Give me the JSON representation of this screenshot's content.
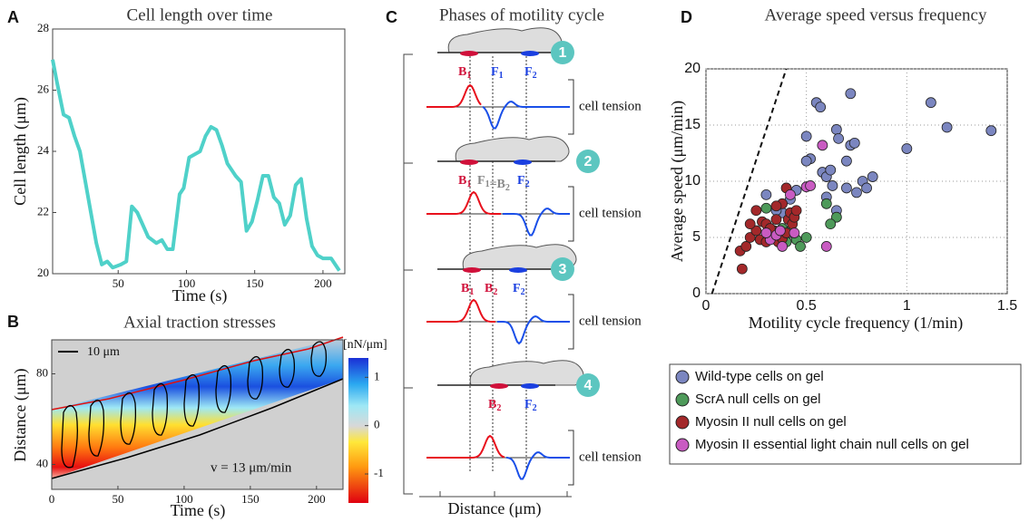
{
  "chart_data": [
    {
      "panel": "A",
      "type": "line",
      "title": "Cell length over time",
      "x_label": "Time (s)",
      "y_label": "Cell length (μm)",
      "x": [
        2,
        5,
        10,
        14,
        18,
        22,
        26,
        30,
        34,
        38,
        42,
        46,
        52,
        56,
        60,
        64,
        68,
        72,
        78,
        82,
        86,
        90,
        95,
        98,
        102,
        106,
        110,
        114,
        118,
        122,
        126,
        130,
        136,
        140,
        144,
        148,
        152,
        156,
        160,
        164,
        168,
        172,
        176,
        180,
        184,
        188,
        192,
        196,
        200,
        206,
        212
      ],
      "values": [
        27,
        26.3,
        25.2,
        25.1,
        24.5,
        24,
        23,
        22,
        21,
        20.3,
        20.4,
        20.2,
        20.3,
        20.4,
        22.2,
        22,
        21.6,
        21.2,
        21,
        21.1,
        20.8,
        20.8,
        22.6,
        22.8,
        23.8,
        23.9,
        24,
        24.5,
        24.8,
        24.7,
        24.2,
        23.6,
        23.2,
        23,
        21.4,
        21.7,
        22.4,
        23.2,
        23.2,
        22.5,
        22.3,
        21.6,
        21.9,
        22.9,
        23.1,
        21.8,
        20.9,
        20.6,
        20.5,
        20.5,
        20.1
      ],
      "color": "#4fd1c9",
      "xlim": [
        2,
        216
      ],
      "ylim": [
        20,
        28
      ],
      "xticks": [
        50,
        100,
        150,
        200
      ],
      "yticks": [
        20,
        22,
        24,
        26,
        28
      ]
    },
    {
      "panel": "B",
      "type": "heatmap",
      "title": "Axial traction stresses",
      "x_label": "Time (s)",
      "y_label": "Distance (μm)",
      "xlim": [
        0,
        220
      ],
      "ylim": [
        29,
        95
      ],
      "xticks": [
        0,
        50,
        100,
        150,
        200
      ],
      "yticks": [
        40,
        80
      ],
      "colorbar": {
        "label": "[nN/μm]",
        "lim": [
          -1.6,
          1.4
        ],
        "ticks": [
          1,
          0,
          -1
        ]
      },
      "scale_bar": "10 μm",
      "annotation": "v = 13 μm/min"
    },
    {
      "panel": "D",
      "type": "scatter",
      "title": "Average speed versus frequency",
      "x_label": "Motility cycle frequency (1/min)",
      "y_label": "Average speed (μm/min)",
      "xlim": [
        0,
        1.5
      ],
      "ylim": [
        0,
        20
      ],
      "xticks": [
        0,
        0.5,
        1,
        1.5
      ],
      "yticks": [
        0,
        5,
        10,
        15,
        20
      ],
      "grid": true,
      "fit_line": {
        "x": [
          0.03,
          0.4
        ],
        "values": [
          0,
          20
        ]
      },
      "series": [
        {
          "name": "Wild-type cells on gel",
          "color": "#7b86c0",
          "x": [
            0.5,
            0.52,
            0.5,
            0.58,
            0.6,
            0.62,
            0.63,
            0.65,
            0.66,
            0.7,
            0.72,
            0.74,
            0.7,
            0.75,
            0.78,
            0.8,
            0.83,
            0.6,
            0.45,
            0.42,
            0.38,
            0.35,
            0.3,
            0.55,
            0.72,
            1.0,
            1.12,
            1.2,
            1.42,
            0.57,
            0.65,
            0.4
          ],
          "values": [
            14,
            12,
            11.8,
            10.8,
            10.4,
            11,
            9.6,
            14.6,
            13.8,
            11.8,
            13.2,
            13.4,
            9.4,
            9,
            10,
            9.4,
            10.4,
            8.6,
            9.2,
            8.4,
            7.2,
            7.4,
            8.8,
            17,
            17.8,
            12.9,
            17,
            14.8,
            14.5,
            16.6,
            7.4,
            5.2
          ]
        },
        {
          "name": "ScrA null cells on gel",
          "color": "#4e9a5a",
          "x": [
            0.3,
            0.42,
            0.45,
            0.47,
            0.4,
            0.38,
            0.5,
            0.65,
            0.62,
            0.6
          ],
          "values": [
            7.6,
            5.6,
            4.8,
            4.2,
            4.6,
            5.8,
            5,
            6.8,
            6.2,
            8
          ]
        },
        {
          "name": "Myosin II null cells on gel",
          "color": "#a3282a",
          "x": [
            0.17,
            0.18,
            0.2,
            0.22,
            0.25,
            0.27,
            0.28,
            0.3,
            0.3,
            0.33,
            0.34,
            0.35,
            0.36,
            0.38,
            0.4,
            0.41,
            0.42,
            0.43,
            0.44,
            0.45,
            0.4,
            0.38,
            0.35,
            0.25,
            0.22,
            0.32
          ],
          "values": [
            3.8,
            2.2,
            4.2,
            5,
            5.6,
            4.8,
            6.4,
            4.6,
            6.2,
            5.3,
            5.6,
            6.6,
            4.6,
            4.9,
            5.4,
            6.6,
            7.2,
            6.2,
            6.8,
            7.4,
            9.4,
            8,
            7.8,
            7.4,
            6.2,
            5.8
          ]
        },
        {
          "name": "Myosin II essential light chain null cells on gel",
          "color": "#c95bc2",
          "x": [
            0.32,
            0.35,
            0.37,
            0.38,
            0.42,
            0.44,
            0.5,
            0.52,
            0.58,
            0.6,
            0.3
          ],
          "values": [
            4.8,
            5.2,
            5.6,
            4.2,
            8.8,
            5.4,
            9.5,
            9.6,
            13.2,
            4.2,
            5.4
          ]
        }
      ]
    }
  ],
  "diagram": {
    "panel": "C",
    "title": "Phases of motility cycle",
    "x_label": "Distance (μm)",
    "steps": [
      {
        "number": "1",
        "tension": "cell tension",
        "labels": [
          [
            {
              "base": "B",
              "sub": "1"
            }
          ],
          [
            {
              "base": "F",
              "sub": "1"
            }
          ],
          [
            {
              "base": "F",
              "sub": "2"
            }
          ]
        ]
      },
      {
        "number": "2",
        "tension": "cell tension",
        "labels": [
          [
            {
              "base": "B",
              "sub": "1"
            }
          ],
          [
            {
              "base": "F",
              "sub": "1"
            },
            {
              "base": "=B",
              "sub": "2"
            }
          ],
          [
            {
              "base": "F",
              "sub": "2"
            }
          ]
        ]
      },
      {
        "number": "3",
        "tension": "cell tension",
        "labels": [
          [
            {
              "base": "B",
              "sub": "1"
            }
          ],
          [
            {
              "base": "B",
              "sub": "2"
            }
          ],
          [
            {
              "base": "F",
              "sub": "2"
            }
          ]
        ]
      },
      {
        "number": "4",
        "tension": "cell tension",
        "labels": [
          [
            {
              "base": "B",
              "sub": "2"
            }
          ],
          [
            {
              "base": "F",
              "sub": "2"
            }
          ]
        ]
      }
    ]
  }
}
